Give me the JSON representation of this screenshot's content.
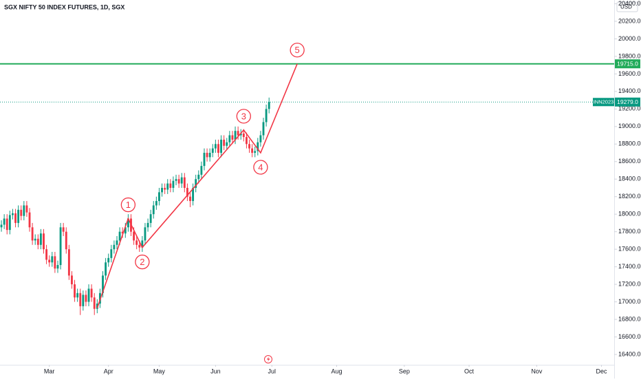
{
  "chart_data": {
    "type": "candlestick",
    "title": "SGX NIFTY 50 INDEX FUTURES, 1D, SGX",
    "currency": "USD",
    "up_color": "#089981",
    "down_color": "#f23645",
    "xlim": [
      -0.5,
      217.5
    ],
    "xticks": [
      {
        "value": 17,
        "label": "Mar"
      },
      {
        "value": 38,
        "label": "Apr"
      },
      {
        "value": 56,
        "label": "May"
      },
      {
        "value": 76,
        "label": "Jun"
      },
      {
        "value": 96,
        "label": "Jul"
      },
      {
        "value": 119,
        "label": "Aug"
      },
      {
        "value": 143,
        "label": "Sep"
      },
      {
        "value": 166,
        "label": "Oct"
      },
      {
        "value": 190,
        "label": "Nov"
      },
      {
        "value": 213,
        "label": "Dec"
      }
    ],
    "ylim": [
      16282,
      20443
    ],
    "yticks": [
      {
        "value": 16400,
        "label": "16400.0"
      },
      {
        "value": 16600,
        "label": "16600.0"
      },
      {
        "value": 16800,
        "label": "16800.0"
      },
      {
        "value": 17000,
        "label": "17000.0"
      },
      {
        "value": 17200,
        "label": "17200.0"
      },
      {
        "value": 17400,
        "label": "17400.0"
      },
      {
        "value": 17600,
        "label": "17600.0"
      },
      {
        "value": 17800,
        "label": "17800.0"
      },
      {
        "value": 18000,
        "label": "18000.0"
      },
      {
        "value": 18200,
        "label": "18200.0"
      },
      {
        "value": 18400,
        "label": "18400.0"
      },
      {
        "value": 18600,
        "label": "18600.0"
      },
      {
        "value": 18800,
        "label": "18800.0"
      },
      {
        "value": 19000,
        "label": "19000.0"
      },
      {
        "value": 19200,
        "label": "19200.0"
      },
      {
        "value": 19400,
        "label": "19400.0"
      },
      {
        "value": 19600,
        "label": "19600.0"
      },
      {
        "value": 19800,
        "label": "19800.0"
      },
      {
        "value": 20000,
        "label": "20000.0"
      },
      {
        "value": 20200,
        "label": "20200.0"
      },
      {
        "value": 20400,
        "label": "20400.0"
      }
    ],
    "open": [
      17850,
      17880,
      17950,
      17820,
      17990,
      18010,
      17900,
      18050,
      17980,
      18100,
      18020,
      17850,
      17700,
      17720,
      17650,
      17780,
      17600,
      17480,
      17450,
      17520,
      17380,
      17420,
      17850,
      17800,
      17600,
      17300,
      17200,
      17050,
      17100,
      16950,
      17080,
      17000,
      17150,
      17050,
      16920,
      16980,
      17100,
      17300,
      17450,
      17500,
      17600,
      17650,
      17700,
      17800,
      17780,
      17850,
      17950,
      17800,
      17700,
      17650,
      17620,
      17700,
      17850,
      17900,
      18000,
      18100,
      18150,
      18250,
      18300,
      18280,
      18350,
      18300,
      18380,
      18400,
      18350,
      18420,
      18300,
      18200,
      18150,
      18300,
      18400,
      18450,
      18550,
      18700,
      18650,
      18700,
      18750,
      18800,
      18700,
      18850,
      18780,
      18820,
      18900,
      18850,
      18950,
      18900,
      18920,
      18880,
      18800,
      18750,
      18700,
      18720,
      18820,
      18900,
      19050,
      19200
    ],
    "high": [
      17930,
      18000,
      18000,
      18040,
      18060,
      18060,
      18100,
      18100,
      18150,
      18150,
      18070,
      17900,
      17770,
      17770,
      17830,
      17830,
      17650,
      17530,
      17570,
      17570,
      17470,
      17900,
      17900,
      17850,
      17650,
      17350,
      17250,
      17150,
      17150,
      17130,
      17130,
      17200,
      17200,
      17100,
      17030,
      17150,
      17350,
      17500,
      17550,
      17650,
      17700,
      17750,
      17850,
      17850,
      17900,
      18000,
      18000,
      17850,
      17750,
      17700,
      17750,
      17900,
      17950,
      18050,
      18150,
      18200,
      18300,
      18350,
      18350,
      18400,
      18400,
      18430,
      18450,
      18450,
      18470,
      18470,
      18350,
      18250,
      18350,
      18450,
      18500,
      18600,
      18750,
      18750,
      18750,
      18800,
      18850,
      18850,
      18900,
      18900,
      18870,
      18950,
      18950,
      19000,
      19000,
      18970,
      18970,
      18930,
      18850,
      18800,
      18770,
      18870,
      18950,
      19100,
      19250,
      19330
    ],
    "low": [
      17800,
      17830,
      17770,
      17770,
      17940,
      17850,
      17850,
      17930,
      17930,
      17970,
      17800,
      17650,
      17650,
      17600,
      17600,
      17550,
      17430,
      17400,
      17400,
      17330,
      17330,
      17370,
      17750,
      17550,
      17250,
      17150,
      17000,
      17000,
      16850,
      16900,
      16950,
      16950,
      17000,
      16850,
      16870,
      16930,
      17050,
      17250,
      17400,
      17450,
      17550,
      17600,
      17650,
      17730,
      17730,
      17800,
      17750,
      17650,
      17600,
      17570,
      17570,
      17650,
      17800,
      17850,
      17950,
      18050,
      18100,
      18200,
      18230,
      18230,
      18250,
      18250,
      18330,
      18300,
      18300,
      18250,
      18150,
      18080,
      18100,
      18250,
      18350,
      18400,
      18500,
      18600,
      18600,
      18650,
      18700,
      18650,
      18650,
      18730,
      18730,
      18770,
      18800,
      18800,
      18850,
      18850,
      18830,
      18750,
      18700,
      18650,
      18650,
      18670,
      18770,
      18850,
      19000,
      19150
    ],
    "close": [
      17880,
      17950,
      17820,
      17990,
      18010,
      17900,
      18050,
      17980,
      18100,
      18020,
      17850,
      17700,
      17720,
      17650,
      17780,
      17600,
      17480,
      17450,
      17520,
      17380,
      17420,
      17850,
      17800,
      17600,
      17300,
      17200,
      17050,
      17100,
      16950,
      17080,
      17000,
      17150,
      17050,
      16920,
      16980,
      17100,
      17300,
      17450,
      17500,
      17600,
      17650,
      17700,
      17800,
      17780,
      17850,
      17950,
      17800,
      17700,
      17650,
      17620,
      17700,
      17850,
      17900,
      18000,
      18100,
      18150,
      18250,
      18300,
      18280,
      18350,
      18300,
      18380,
      18400,
      18350,
      18420,
      18300,
      18200,
      18150,
      18300,
      18400,
      18450,
      18550,
      18700,
      18650,
      18700,
      18750,
      18800,
      18700,
      18850,
      18780,
      18820,
      18900,
      18850,
      18950,
      18900,
      18920,
      18880,
      18800,
      18750,
      18700,
      18720,
      18820,
      18900,
      19050,
      19200,
      19280
    ],
    "wave": {
      "color": "#f23645",
      "x": [
        34,
        45,
        50,
        86,
        92,
        105
      ],
      "values": [
        16930,
        17950,
        17620,
        18960,
        18700,
        19715
      ],
      "labels": [
        "1",
        "2",
        "3",
        "4",
        "5"
      ]
    },
    "level": {
      "value": 19715,
      "label": "19715.0",
      "color": "#22ab5a"
    },
    "last_price": {
      "value": 19279,
      "label": "19279.0",
      "symbol": "INN2023",
      "color": "#089981"
    }
  }
}
